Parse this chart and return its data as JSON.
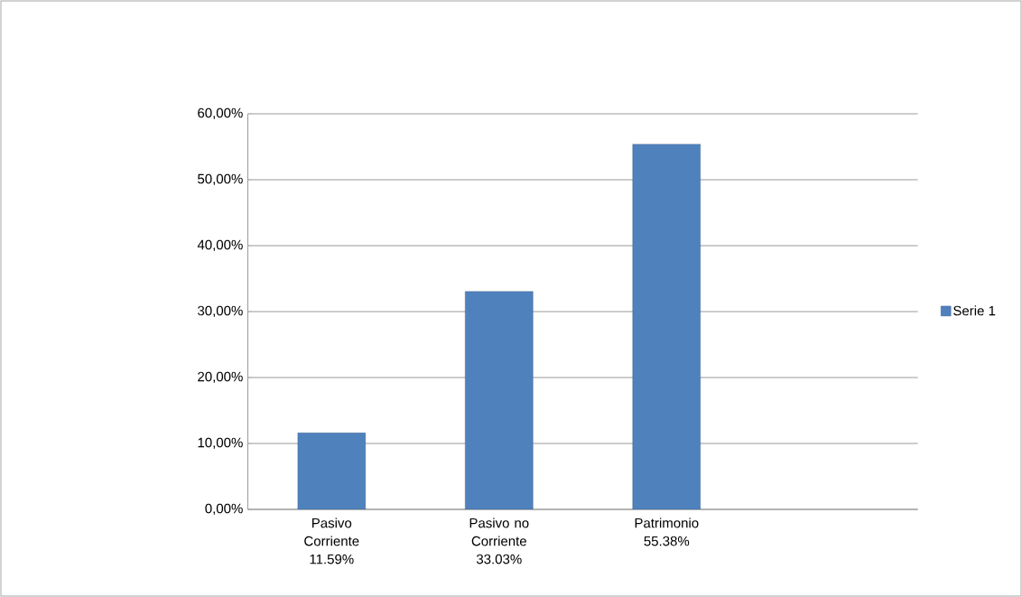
{
  "chart_data": {
    "type": "bar",
    "categories": [
      "Pasivo Corriente 11.59%",
      "Pasivo no Corriente 33.03%",
      "Patrimonio 55.38%",
      null
    ],
    "series": [
      {
        "name": "Serie 1",
        "color": "#4f81bd",
        "values": [
          11.59,
          33.03,
          55.38,
          null
        ]
      }
    ],
    "ylim": [
      0,
      60
    ],
    "yticks": [
      {
        "value": 0,
        "label": "0,00%"
      },
      {
        "value": 10,
        "label": "10,00%"
      },
      {
        "value": 20,
        "label": "20,00%"
      },
      {
        "value": 30,
        "label": "30,00%"
      },
      {
        "value": 40,
        "label": "40,00%"
      },
      {
        "value": 50,
        "label": "50,00%"
      },
      {
        "value": 60,
        "label": "60,00%"
      }
    ],
    "grid": "y",
    "legend": "right"
  }
}
